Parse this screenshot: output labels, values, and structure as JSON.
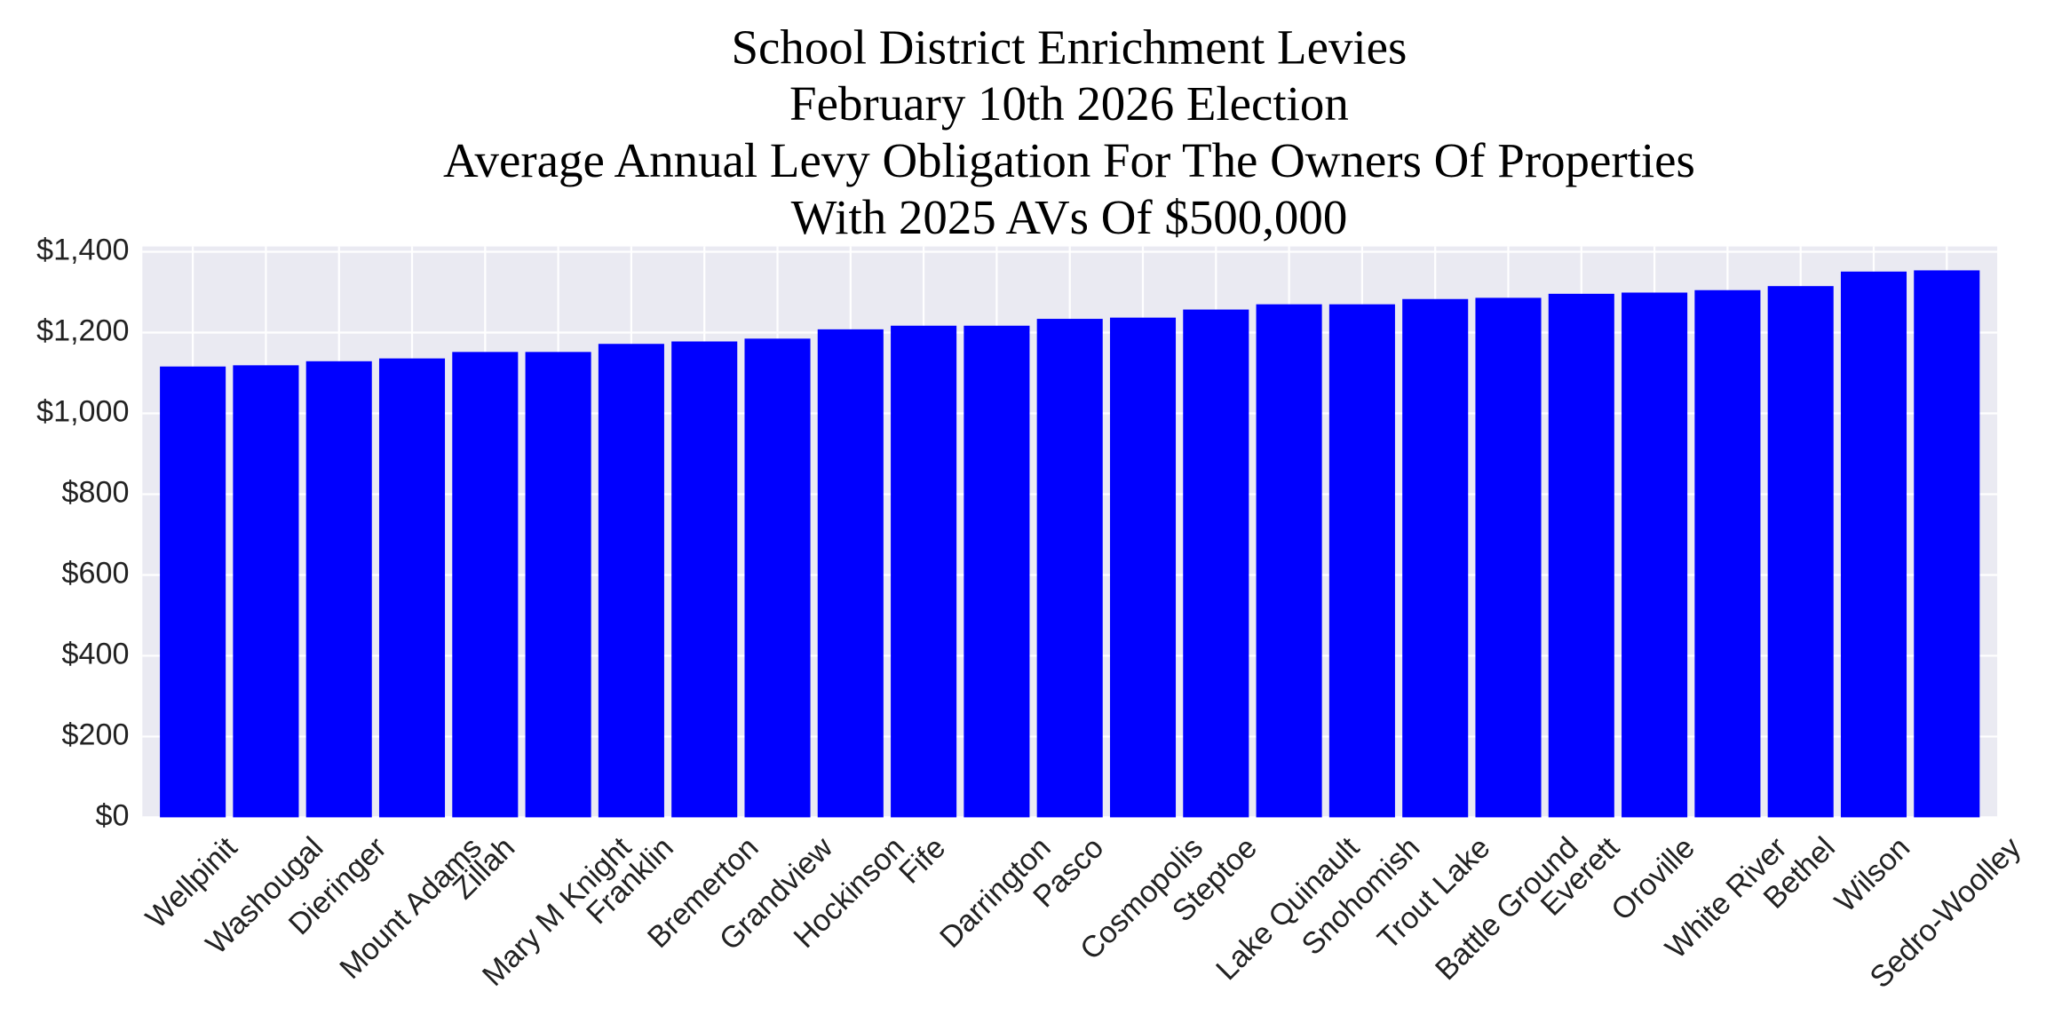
{
  "chart_data": {
    "type": "bar",
    "title": [
      "School District Enrichment Levies",
      "February 10th 2026 Election",
      "Average Annual Levy Obligation For The Owners Of Properties",
      "With 2025 AVs Of $500,000"
    ],
    "categories": [
      "Wellpinit",
      "Washougal",
      "Dieringer",
      "Mount Adams",
      "Zillah",
      "Mary M Knight",
      "Franklin",
      "Bremerton",
      "Grandview",
      "Hockinson",
      "Fife",
      "Darrington",
      "Pasco",
      "Cosmopolis",
      "Steptoe",
      "Lake Quinault",
      "Snohomish",
      "Trout Lake",
      "Battle Ground",
      "Everett",
      "Oroville",
      "White River",
      "Bethel",
      "Wilson",
      "Sedro-Woolley"
    ],
    "values": [
      1116,
      1119,
      1129,
      1136,
      1152,
      1152,
      1172,
      1178,
      1185,
      1208,
      1217,
      1217,
      1234,
      1237,
      1257,
      1270,
      1270,
      1283,
      1286,
      1296,
      1299,
      1305,
      1315,
      1351,
      1354
    ],
    "color": "#0000ff",
    "ylim": [
      0,
      1413
    ],
    "yticks": [
      {
        "value": 0,
        "label": "$0"
      },
      {
        "value": 200,
        "label": "$200"
      },
      {
        "value": 400,
        "label": "$400"
      },
      {
        "value": 600,
        "label": "$600"
      },
      {
        "value": 800,
        "label": "$800"
      },
      {
        "value": 1000,
        "label": "$1,000"
      },
      {
        "value": 1200,
        "label": "$1,200"
      },
      {
        "value": 1400,
        "label": "$1,400"
      }
    ],
    "grid": true
  }
}
